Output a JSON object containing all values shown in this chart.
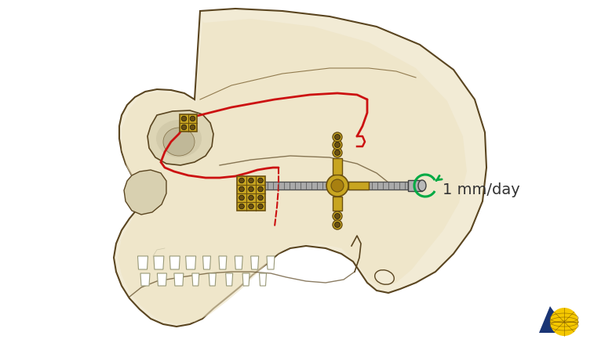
{
  "bg_color": "#ffffff",
  "skull_fill": "#f2ebd5",
  "skull_fill2": "#ede3c4",
  "skull_edge": "#5a4520",
  "skull_edge2": "#7a6030",
  "osteotomy_color": "#cc1111",
  "plate_gold": "#c8a520",
  "plate_dark": "#6b5010",
  "plate_mid": "#a88010",
  "device_gray": "#909090",
  "device_dark": "#404040",
  "device_light": "#c0c0c0",
  "green_arrow": "#00aa44",
  "text_color": "#333333",
  "label_text": "1 mm/day",
  "label_fontsize": 14,
  "logo_blue": "#1a3575",
  "logo_yellow": "#f5c800"
}
